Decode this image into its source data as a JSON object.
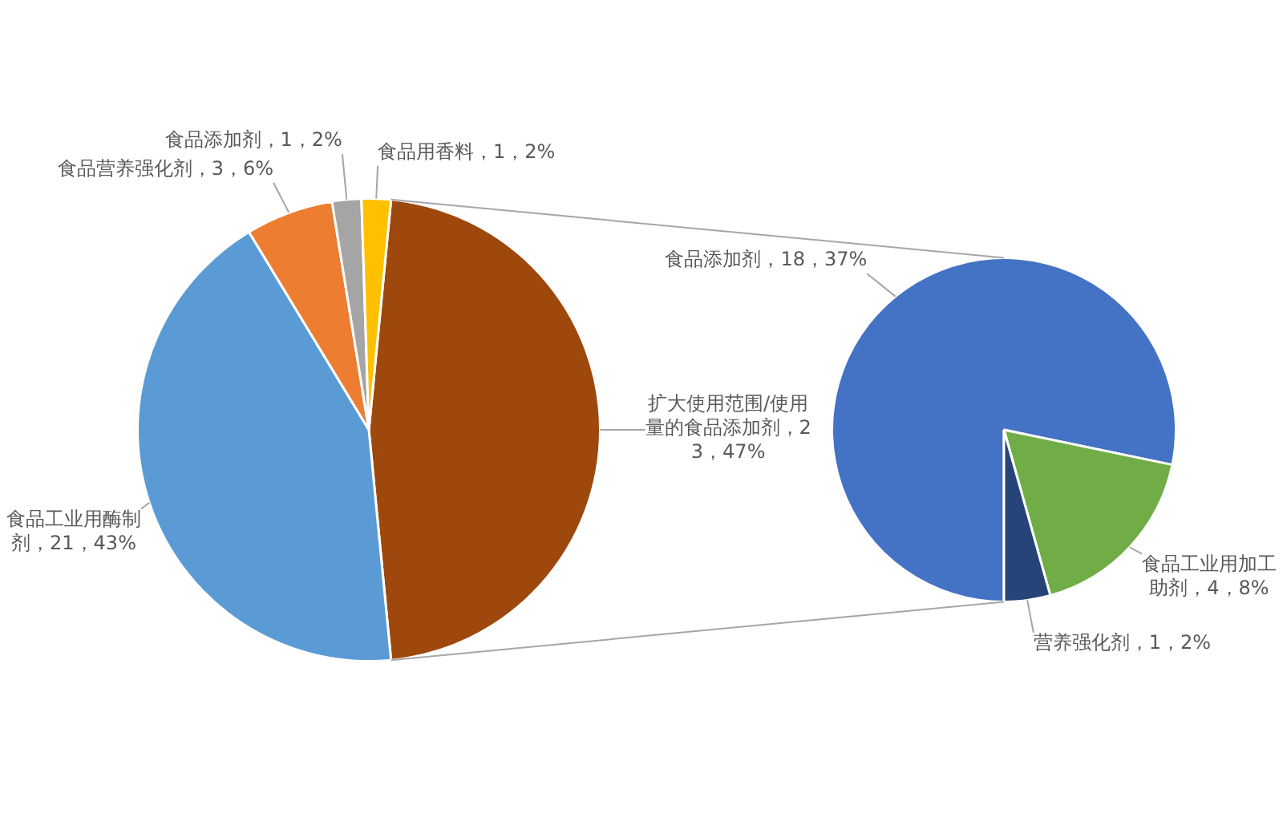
{
  "chart_data": [
    {
      "type": "pie",
      "categories": [
        "扩大使用范围/使用量的食品添加剂",
        "食品工业用酶制剂",
        "食品营养强化剂",
        "食品添加剂",
        "食品用香料"
      ],
      "values": [
        23,
        21,
        3,
        1,
        1
      ],
      "colors": [
        "#9e480e",
        "#5b9bd5",
        "#ed7d31",
        "#a5a5a5",
        "#ffc000"
      ],
      "value_labels": [
        "23，47%",
        "21，43%",
        "3，6%",
        "1，2%",
        "1，2%"
      ]
    },
    {
      "type": "pie",
      "categories": [
        "食品添加剂",
        "食品工业用加工助剂",
        "营养强化剂"
      ],
      "values": [
        18,
        4,
        1
      ],
      "colors": [
        "#4472c4",
        "#70ad47",
        "#264478"
      ],
      "value_labels": [
        "18，37%",
        "4，8%",
        "1，2%"
      ]
    }
  ]
}
